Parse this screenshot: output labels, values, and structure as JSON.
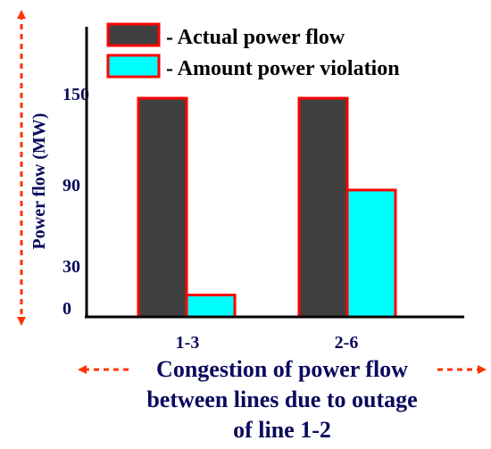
{
  "chart_data": {
    "type": "bar",
    "categories": [
      "1-3",
      "2-6"
    ],
    "series": [
      {
        "name": "- Actual power flow",
        "values": [
          150,
          150
        ],
        "color": "#404040"
      },
      {
        "name": "- Amount power violation",
        "values": [
          15,
          87
        ],
        "color": "#00ffff"
      }
    ],
    "ylabel": "Power flow (MW)",
    "xlabel_lines": [
      "Congestion of power flow",
      "between lines due to outage",
      "of line 1-2"
    ],
    "yticks": [
      0,
      30,
      90,
      150
    ],
    "ylim": [
      0,
      180
    ],
    "bar_border_color": "#ff0000",
    "label_color": "#0a0a5e",
    "arrow_color": "#ff3300",
    "legend_position": "top"
  }
}
